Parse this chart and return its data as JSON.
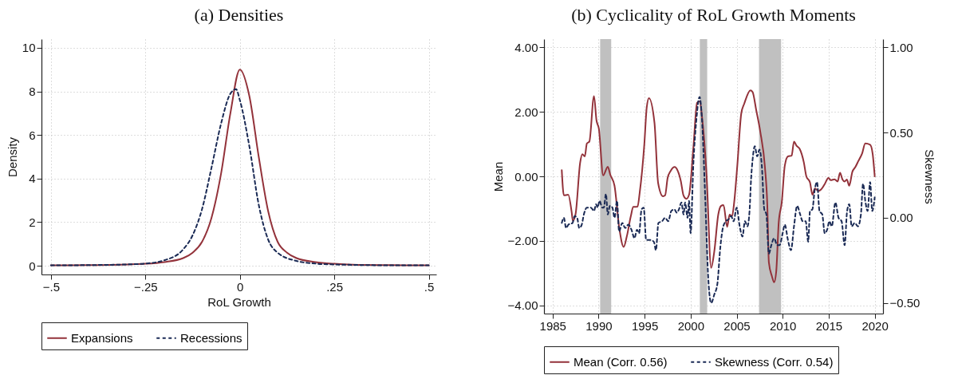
{
  "chart_data": [
    {
      "type": "line",
      "title": "(a) Densities",
      "xlabel": "RoL Growth",
      "ylabel": "Density",
      "xlim": [
        -0.525,
        0.52
      ],
      "ylim": [
        -0.4,
        10.4
      ],
      "xticks": [
        {
          "value": -0.5,
          "label": "−.5"
        },
        {
          "value": -0.25,
          "label": "−.25"
        },
        0,
        {
          "value": 0.25,
          "label": ".25"
        },
        {
          "value": 0.5,
          "label": ".5"
        }
      ],
      "yticks": [
        0,
        2,
        4,
        6,
        8,
        10
      ],
      "grid": true,
      "legend": "bottom",
      "series": [
        {
          "name": "Expansions",
          "color": "#93323a",
          "line_style": "solid",
          "x": [
            -0.5,
            -0.4,
            -0.3,
            -0.25,
            -0.2,
            -0.15,
            -0.125,
            -0.1,
            -0.075,
            -0.05,
            -0.025,
            0,
            0.025,
            0.05,
            0.075,
            0.1,
            0.125,
            0.15,
            0.2,
            0.25,
            0.3,
            0.4,
            0.5
          ],
          "values": [
            0.02,
            0.03,
            0.06,
            0.09,
            0.17,
            0.35,
            0.6,
            1.1,
            2.2,
            4.2,
            7.0,
            9.0,
            7.8,
            5.0,
            2.5,
            1.1,
            0.6,
            0.35,
            0.17,
            0.09,
            0.05,
            0.03,
            0.02
          ]
        },
        {
          "name": "Recessions",
          "color": "#1a2a55",
          "line_style": "dashed",
          "x": [
            -0.5,
            -0.4,
            -0.3,
            -0.25,
            -0.2,
            -0.15,
            -0.125,
            -0.1,
            -0.075,
            -0.05,
            -0.025,
            -0.01,
            0,
            0.025,
            0.05,
            0.075,
            0.1,
            0.15,
            0.2,
            0.25,
            0.3,
            0.4,
            0.5
          ],
          "values": [
            0.02,
            0.03,
            0.06,
            0.1,
            0.25,
            0.75,
            1.4,
            2.6,
            4.5,
            6.5,
            7.9,
            8.1,
            7.6,
            5.5,
            2.8,
            1.2,
            0.6,
            0.22,
            0.1,
            0.06,
            0.04,
            0.02,
            0.02
          ]
        }
      ]
    },
    {
      "type": "line",
      "title": "(b) Cyclicality of RoL Growth Moments",
      "ylabel": "Mean",
      "y2label": "Skewness",
      "xlim": [
        1984.07,
        2020.9
      ],
      "ylim": [
        -4.26,
        4.26
      ],
      "y2lim": [
        -0.562,
        1.049
      ],
      "xticks": [
        1985,
        1990,
        1995,
        2000,
        2005,
        2010,
        2015,
        2020
      ],
      "yticks": [
        {
          "value": -4,
          "label": "−4.00"
        },
        {
          "value": -2,
          "label": "−2.00"
        },
        {
          "value": 0,
          "label": "0.00"
        },
        {
          "value": 2,
          "label": "2.00"
        },
        {
          "value": 4,
          "label": "4.00"
        }
      ],
      "y2ticks": [
        {
          "value": -0.5,
          "label": "−0.50"
        },
        {
          "value": 0,
          "label": "0.00"
        },
        {
          "value": 0.5,
          "label": "0.50"
        },
        {
          "value": 1,
          "label": "1.00"
        }
      ],
      "grid": true,
      "legend": "bottom",
      "bands": [
        {
          "axis": "x",
          "from": 1990.17,
          "to": 1991.37,
          "color": "#c0c0c0"
        },
        {
          "axis": "x",
          "from": 2001.0,
          "to": 2001.8,
          "color": "#c0c0c0"
        },
        {
          "axis": "x",
          "from": 2007.43,
          "to": 2009.83,
          "color": "#c0c0c0"
        }
      ],
      "series": [
        {
          "name": "Mean (Corr. 0.56)",
          "color": "#93323a",
          "line_style": "solid",
          "x": [
            1986.0,
            1986.23,
            1986.7,
            1987.07,
            1987.2,
            1987.5,
            1988.0,
            1988.23,
            1988.5,
            1988.73,
            1989.0,
            1989.5,
            1989.77,
            1990.03,
            1990.5,
            1991.0,
            1991.27,
            1991.73,
            1992.23,
            1992.73,
            1993.07,
            1993.5,
            1993.77,
            1994.23,
            1994.47,
            1994.97,
            1995.23,
            1995.47,
            1996.07,
            1996.47,
            1997.0,
            1997.23,
            1997.5,
            1997.83,
            1998.27,
            1998.57,
            1998.93,
            1999.23,
            1999.53,
            1999.83,
            2000.3,
            2000.7,
            2000.97,
            2001.3,
            2001.73,
            2002.23,
            2002.57,
            2003.0,
            2003.3,
            2003.57,
            2003.97,
            2004.23,
            2004.5,
            2004.73,
            2005.07,
            2005.5,
            2005.83,
            2006.5,
            2006.73,
            2007.13,
            2007.57,
            2008.07,
            2008.33,
            2008.5,
            2008.83,
            2009.07,
            2009.3,
            2009.57,
            2009.9,
            2010.23,
            2010.57,
            2010.97,
            2011.23,
            2011.5,
            2011.83,
            2012.3,
            2012.57,
            2012.97,
            2013.23,
            2013.5,
            2013.9,
            2014.17,
            2014.57,
            2014.97,
            2015.23,
            2015.63,
            2015.97,
            2016.23,
            2016.5,
            2016.73,
            2016.97,
            2017.23,
            2017.57,
            2017.9,
            2018.23,
            2018.63,
            2018.97,
            2019.5,
            2019.77,
            2020.0
          ],
          "values": [
            0.19,
            -0.59,
            -0.57,
            -1.1,
            -1.38,
            -1.17,
            0.43,
            0.69,
            0.62,
            1.02,
            1.08,
            2.49,
            1.74,
            1.48,
            0.03,
            0.3,
            0.05,
            -0.29,
            -1.57,
            -2.19,
            -1.86,
            -1.24,
            -0.95,
            -0.94,
            -0.5,
            1.0,
            2.14,
            2.43,
            1.67,
            -0.21,
            -0.62,
            -0.59,
            -0.05,
            0.17,
            0.29,
            0.19,
            -0.14,
            -0.6,
            -0.7,
            -0.57,
            0.9,
            2.28,
            2.33,
            1.67,
            0.05,
            -2.84,
            -2.33,
            -1.19,
            -0.92,
            -0.89,
            -1.57,
            -1.19,
            -1.24,
            -0.81,
            0.33,
            1.95,
            2.26,
            2.67,
            2.62,
            2.05,
            1.38,
            0.29,
            -0.9,
            -2.67,
            -3.1,
            -3.29,
            -2.95,
            -1.43,
            -0.81,
            0.33,
            0.62,
            0.64,
            1.08,
            0.95,
            0.86,
            0.43,
            0.0,
            -0.19,
            -0.57,
            -0.38,
            -0.45,
            -0.41,
            -0.24,
            -0.05,
            -0.12,
            -0.09,
            -0.16,
            0.11,
            -0.1,
            -0.16,
            -0.1,
            -0.29,
            0.14,
            0.29,
            0.48,
            0.71,
            1.02,
            0.98,
            0.71,
            0.0
          ]
        },
        {
          "name": "Skewness (Corr. 0.54)",
          "color": "#1a2a55",
          "line_style": "dashed",
          "axis": "y2",
          "x": [
            1986.0,
            1986.23,
            1986.47,
            1986.73,
            1987.17,
            1987.4,
            1987.67,
            1987.9,
            1988.17,
            1988.4,
            1988.73,
            1989.17,
            1989.5,
            1989.73,
            1989.9,
            1990.1,
            1990.4,
            1990.57,
            1990.8,
            1991.0,
            1991.23,
            1991.5,
            1991.73,
            1992.0,
            1992.23,
            1992.57,
            1992.9,
            1993.23,
            1993.57,
            1993.9,
            1994.17,
            1994.4,
            1994.67,
            1994.9,
            1995.17,
            1995.57,
            1996.0,
            1996.23,
            1996.5,
            1996.9,
            1997.23,
            1997.57,
            1997.9,
            1998.23,
            1998.5,
            1998.73,
            1999.0,
            1999.23,
            1999.4,
            1999.67,
            1999.83,
            2000.0,
            2000.3,
            2000.63,
            2000.97,
            2001.23,
            2001.57,
            2001.9,
            2002.23,
            2002.57,
            2002.9,
            2003.23,
            2003.5,
            2003.83,
            2004.1,
            2004.4,
            2004.67,
            2005.0,
            2005.33,
            2005.63,
            2005.9,
            2006.17,
            2006.4,
            2006.57,
            2006.73,
            2006.97,
            2007.23,
            2007.47,
            2007.73,
            2008.0,
            2008.23,
            2008.5,
            2008.77,
            2009.07,
            2009.4,
            2009.67,
            2010.0,
            2010.23,
            2010.57,
            2010.9,
            2011.23,
            2011.57,
            2011.9,
            2012.17,
            2012.5,
            2012.77,
            2012.97,
            2013.23,
            2013.47,
            2013.73,
            2014.0,
            2014.3,
            2014.57,
            2014.83,
            2015.07,
            2015.33,
            2015.73,
            2016.07,
            2016.4,
            2016.73,
            2017.0,
            2017.23,
            2017.5,
            2017.83,
            2018.17,
            2018.5,
            2018.73,
            2019.0,
            2019.23,
            2019.5,
            2019.73,
            2020.0
          ],
          "values": [
            -0.03,
            0.0,
            -0.06,
            -0.04,
            -0.03,
            0.01,
            0.0,
            -0.06,
            -0.04,
            0.02,
            0.06,
            0.06,
            0.04,
            0.08,
            0.06,
            0.1,
            0.06,
            0.06,
            0.14,
            0.02,
            0.07,
            0.06,
            0.0,
            0.1,
            -0.08,
            -0.03,
            -0.06,
            -0.04,
            -0.07,
            -0.12,
            -0.07,
            -0.09,
            0.05,
            0.06,
            -0.13,
            -0.13,
            -0.14,
            -0.19,
            -0.03,
            -0.02,
            0.0,
            -0.02,
            0.04,
            0.05,
            0.03,
            0.05,
            0.09,
            0.02,
            0.09,
            0.0,
            0.1,
            -0.09,
            0.32,
            0.58,
            0.71,
            0.58,
            0.14,
            -0.34,
            -0.5,
            -0.45,
            -0.39,
            -0.17,
            -0.06,
            -0.02,
            -0.01,
            0.01,
            -0.02,
            0.06,
            -0.05,
            -0.11,
            -0.02,
            -0.05,
            0.04,
            0.23,
            0.34,
            0.42,
            0.36,
            0.4,
            0.31,
            0.05,
            0.02,
            -0.21,
            -0.16,
            -0.12,
            -0.16,
            -0.16,
            -0.09,
            -0.04,
            -0.13,
            -0.19,
            -0.05,
            0.07,
            0.02,
            -0.02,
            -0.02,
            -0.14,
            0.04,
            0.05,
            0.16,
            0.21,
            0.04,
            0.02,
            -0.09,
            -0.07,
            -0.02,
            -0.05,
            0.09,
            0.0,
            -0.02,
            -0.16,
            0.04,
            0.08,
            -0.05,
            -0.03,
            -0.05,
            0.02,
            0.2,
            0.09,
            0.04,
            0.21,
            0.04,
            0.12
          ]
        }
      ]
    }
  ]
}
